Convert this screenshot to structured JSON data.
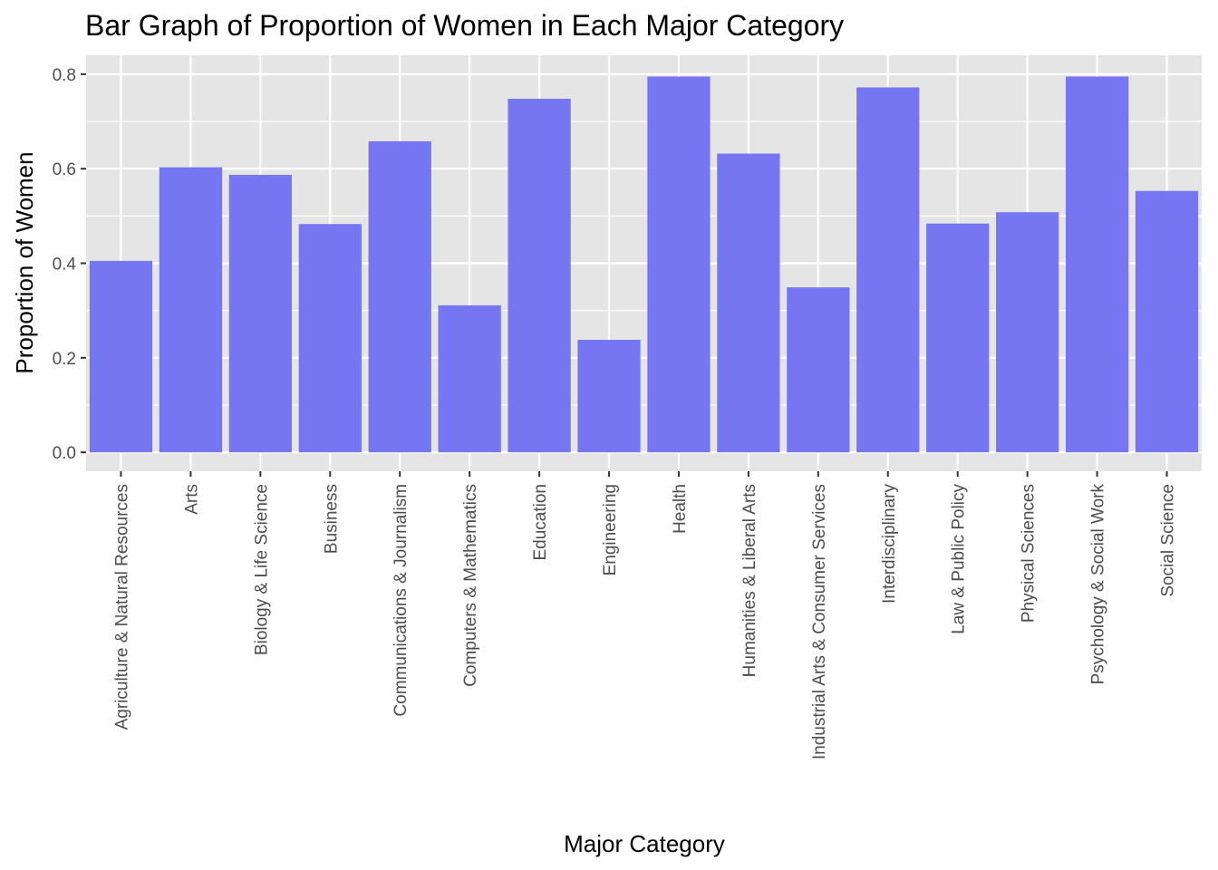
{
  "chart_data": {
    "type": "bar",
    "title": "Bar Graph of Proportion of Women in Each Major Category",
    "xlabel": "Major Category",
    "ylabel": "Proportion of Women",
    "ylim": [
      -0.04,
      0.84
    ],
    "yticks": [
      0.0,
      0.2,
      0.4,
      0.6,
      0.8
    ],
    "ytick_labels": [
      "0.0",
      "0.2",
      "0.4",
      "0.6",
      "0.8"
    ],
    "grid": true,
    "bar_color": "#7373f3",
    "panel_color": "#e5e5e5",
    "categories": [
      "Agriculture & Natural Resources",
      "Arts",
      "Biology & Life Science",
      "Business",
      "Communications & Journalism",
      "Computers & Mathematics",
      "Education",
      "Engineering",
      "Health",
      "Humanities & Liberal Arts",
      "Industrial Arts & Consumer Services",
      "Interdisciplinary",
      "Law & Public Policy",
      "Physical Sciences",
      "Psychology & Social Work",
      "Social Science"
    ],
    "values": [
      0.405,
      0.603,
      0.587,
      0.483,
      0.658,
      0.311,
      0.748,
      0.238,
      0.795,
      0.632,
      0.349,
      0.772,
      0.484,
      0.508,
      0.795,
      0.553
    ]
  }
}
